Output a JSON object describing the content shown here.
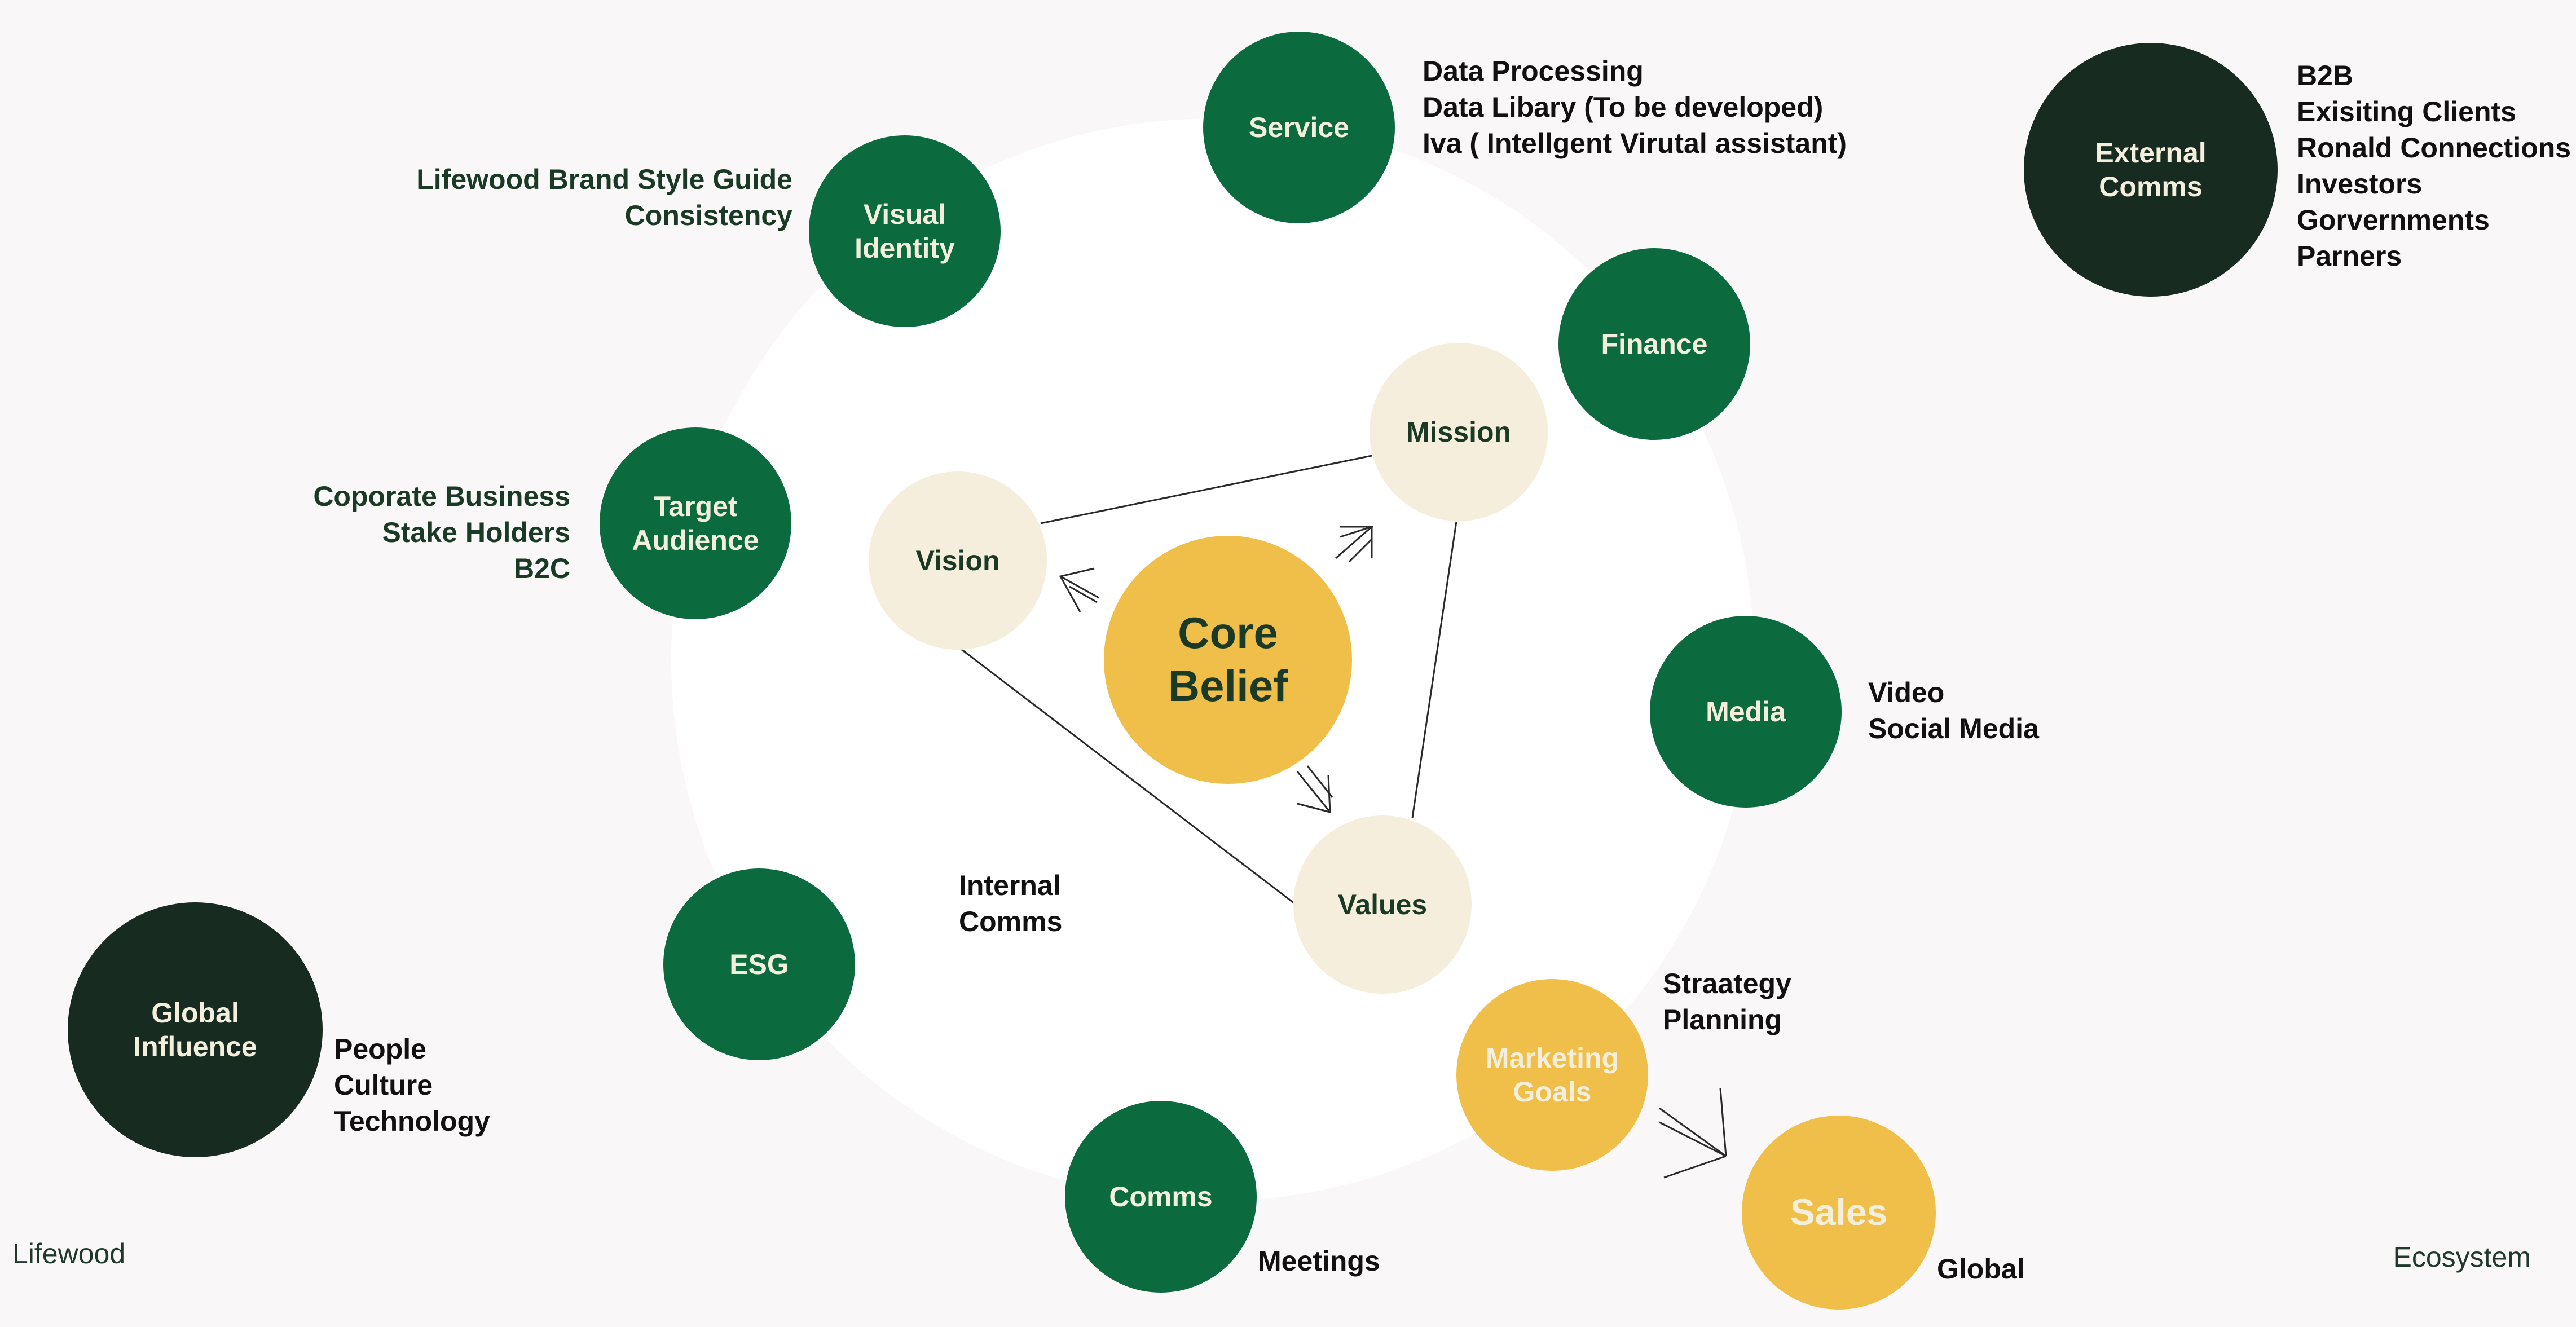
{
  "center": {
    "label": "Core\nBelief"
  },
  "triangle": {
    "vision": "Vision",
    "mission": "Mission",
    "values": "Values"
  },
  "nodes": {
    "service": "Service",
    "visual_identity": "Visual\nIdentity",
    "finance": "Finance",
    "target_audience": "Target\nAudience",
    "media": "Media",
    "esg": "ESG",
    "comms": "Comms",
    "marketing_goals": "Marketing\nGoals",
    "sales": "Sales",
    "external_comms": "External\nComms",
    "global_influence": "Global\nInfluence"
  },
  "notes": {
    "service": [
      "Data Processing",
      "Data Libary (To be developed)",
      "Iva ( Intellgent Virutal assistant)"
    ],
    "visual_identity": [
      "Lifewood Brand Style Guide",
      "Consistency"
    ],
    "target_audience": [
      "Coporate Business",
      "Stake Holders",
      "B2C"
    ],
    "media": [
      "Video",
      "Social Media"
    ],
    "internal_comms": [
      "Internal",
      "Comms"
    ],
    "marketing_goals": [
      "Straategy",
      "Planning"
    ],
    "comms": [
      "Meetings"
    ],
    "sales": [
      "Global"
    ],
    "external_comms": [
      "B2B",
      "Exisiting Clients",
      "Ronald Connections",
      "Investors",
      "Gorvernments",
      "Parners"
    ],
    "global_influence": [
      "People",
      "Culture",
      "Technology"
    ]
  },
  "corners": {
    "left": "Lifewood",
    "right": "Ecosystem"
  },
  "colors": {
    "green": "#0b6b3f",
    "dark": "#172b20",
    "cream": "#f5eedc",
    "yellow": "#f0bf49",
    "background": "#f9f7f7"
  }
}
